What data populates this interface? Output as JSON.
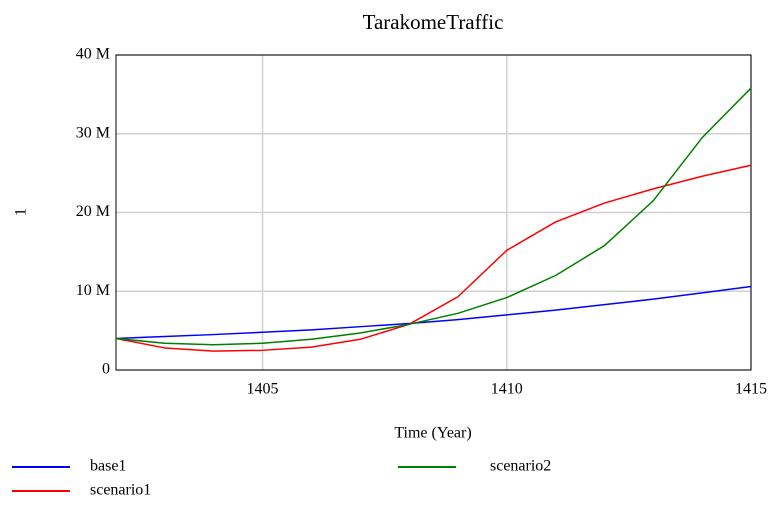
{
  "chart_data": {
    "type": "line",
    "title": "TarakomeTraffic",
    "x_label": "Time (Year)",
    "y_label": "1",
    "x": [
      1402,
      1403,
      1404,
      1405,
      1406,
      1407,
      1408,
      1409,
      1410,
      1411,
      1412,
      1413,
      1414,
      1415
    ],
    "series": [
      {
        "name": "base1",
        "color": "#0000ff",
        "values": [
          4000000,
          4250000,
          4500000,
          4800000,
          5100000,
          5500000,
          5900000,
          6400000,
          7000000,
          7600000,
          8300000,
          9000000,
          9800000,
          10600000
        ]
      },
      {
        "name": "scenario1",
        "color": "#ff0000",
        "values": [
          4000000,
          2800000,
          2400000,
          2500000,
          2900000,
          3900000,
          5800000,
          9300000,
          15200000,
          18800000,
          21200000,
          23000000,
          24600000,
          26000000
        ]
      },
      {
        "name": "scenario2",
        "color": "#008000",
        "values": [
          4000000,
          3400000,
          3200000,
          3400000,
          3900000,
          4700000,
          5800000,
          7200000,
          9200000,
          12000000,
          15800000,
          21500000,
          29500000,
          35800000
        ]
      }
    ],
    "xlim": [
      1402,
      1415
    ],
    "xticks": [
      1405,
      1410,
      1415
    ],
    "ylim": [
      0,
      40000000
    ],
    "yticks": [
      0,
      {
        "value": 10000000,
        "label": "10 M"
      },
      {
        "value": 20000000,
        "label": "20 M"
      },
      {
        "value": 30000000,
        "label": "30 M"
      },
      {
        "value": 40000000,
        "label": "40 M"
      }
    ],
    "grid": true
  }
}
